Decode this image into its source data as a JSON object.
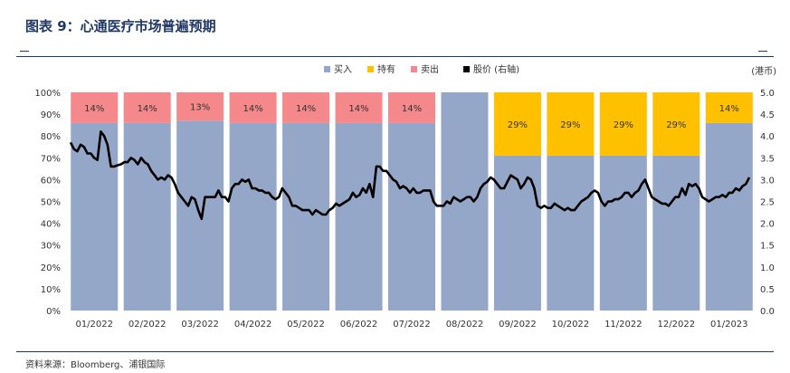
{
  "title": "图表 9：心通医疗市场普遍预期",
  "source": "资料来源：Bloomberg、浦银国际",
  "colors": {
    "buy": "#95a7c8",
    "hold": "#ffc000",
    "sell": "#f4888a",
    "price": "#000000",
    "title": "#1f3864"
  },
  "chart_data": {
    "type": "bar",
    "stacked": true,
    "categories": [
      "01/2022",
      "02/2022",
      "03/2022",
      "04/2022",
      "05/2022",
      "06/2022",
      "07/2022",
      "08/2022",
      "09/2022",
      "10/2022",
      "11/2022",
      "12/2022",
      "01/2023"
    ],
    "series": [
      {
        "name": "买入",
        "key": "buy",
        "values": [
          86,
          86,
          87,
          86,
          86,
          86,
          86,
          100,
          71,
          71,
          71,
          71,
          86
        ]
      },
      {
        "name": "持有",
        "key": "hold",
        "values": [
          0,
          0,
          0,
          0,
          0,
          0,
          0,
          0,
          29,
          29,
          29,
          29,
          14
        ]
      },
      {
        "name": "卖出",
        "key": "sell",
        "values": [
          14,
          14,
          13,
          14,
          14,
          14,
          14,
          0,
          0,
          0,
          0,
          0,
          0
        ]
      }
    ],
    "data_labels": [
      {
        "text": "14%"
      },
      {
        "text": "14%"
      },
      {
        "text": "13%"
      },
      {
        "text": "14%"
      },
      {
        "text": "14%"
      },
      {
        "text": "14%"
      },
      {
        "text": "14%"
      },
      {
        "text": ""
      },
      {
        "text": "29%"
      },
      {
        "text": "29%"
      },
      {
        "text": "29%"
      },
      {
        "text": "29%"
      },
      {
        "text": "14%"
      }
    ],
    "line": {
      "name": "股价 (右轴)",
      "key": "price",
      "values": [
        3.85,
        3.7,
        3.65,
        3.8,
        3.75,
        3.6,
        3.6,
        3.5,
        3.45,
        4.1,
        4.0,
        3.8,
        3.3,
        3.3,
        3.33,
        3.35,
        3.4,
        3.4,
        3.5,
        3.45,
        3.35,
        3.5,
        3.4,
        3.35,
        3.2,
        3.1,
        3.0,
        3.05,
        3.0,
        3.1,
        3.05,
        2.9,
        2.7,
        2.6,
        2.5,
        2.4,
        2.6,
        2.55,
        2.3,
        2.1,
        2.6,
        2.6,
        2.6,
        2.6,
        2.75,
        2.6,
        2.6,
        2.5,
        2.8,
        2.9,
        2.9,
        3.0,
        2.95,
        3.0,
        2.8,
        2.8,
        2.75,
        2.75,
        2.7,
        2.7,
        2.6,
        2.55,
        2.6,
        2.8,
        2.7,
        2.6,
        2.4,
        2.4,
        2.35,
        2.3,
        2.3,
        2.3,
        2.2,
        2.3,
        2.25,
        2.2,
        2.2,
        2.3,
        2.35,
        2.45,
        2.4,
        2.45,
        2.5,
        2.55,
        2.7,
        2.6,
        2.65,
        2.8,
        2.7,
        2.9,
        2.6,
        3.3,
        3.3,
        3.2,
        3.2,
        3.1,
        3.0,
        2.95,
        2.8,
        2.85,
        2.8,
        2.7,
        2.8,
        2.7,
        2.7,
        2.75,
        2.75,
        2.75,
        2.5,
        2.4,
        2.4,
        2.4,
        2.5,
        2.45,
        2.6,
        2.55,
        2.5,
        2.55,
        2.6,
        2.6,
        2.5,
        2.6,
        2.8,
        2.9,
        2.95,
        3.05,
        3.0,
        2.9,
        2.8,
        2.8,
        2.95,
        3.1,
        3.05,
        3.0,
        2.8,
        2.9,
        3.05,
        3.0,
        2.8,
        2.4,
        2.35,
        2.4,
        2.35,
        2.35,
        2.45,
        2.4,
        2.35,
        2.3,
        2.35,
        2.3,
        2.3,
        2.4,
        2.5,
        2.55,
        2.6,
        2.7,
        2.75,
        2.7,
        2.5,
        2.4,
        2.5,
        2.5,
        2.55,
        2.55,
        2.6,
        2.7,
        2.7,
        2.6,
        2.7,
        2.75,
        2.9,
        3.0,
        2.8,
        2.6,
        2.55,
        2.5,
        2.45,
        2.45,
        2.4,
        2.5,
        2.6,
        2.6,
        2.8,
        2.65,
        2.9,
        2.85,
        2.9,
        2.8,
        2.6,
        2.55,
        2.5,
        2.55,
        2.6,
        2.6,
        2.65,
        2.6,
        2.7,
        2.7,
        2.8,
        2.75,
        2.85,
        2.9,
        3.05
      ]
    },
    "y_left": {
      "ticks": [
        "0%",
        "10%",
        "20%",
        "30%",
        "40%",
        "50%",
        "60%",
        "70%",
        "80%",
        "90%",
        "100%"
      ],
      "min": 0,
      "max": 100
    },
    "y_right": {
      "label": "(港币)",
      "ticks": [
        "0.0",
        "0.5",
        "1.0",
        "1.5",
        "2.0",
        "2.5",
        "3.0",
        "3.5",
        "4.0",
        "4.5",
        "5.0"
      ],
      "min": 0,
      "max": 5
    },
    "legend_position": "top-center",
    "grid": false
  }
}
